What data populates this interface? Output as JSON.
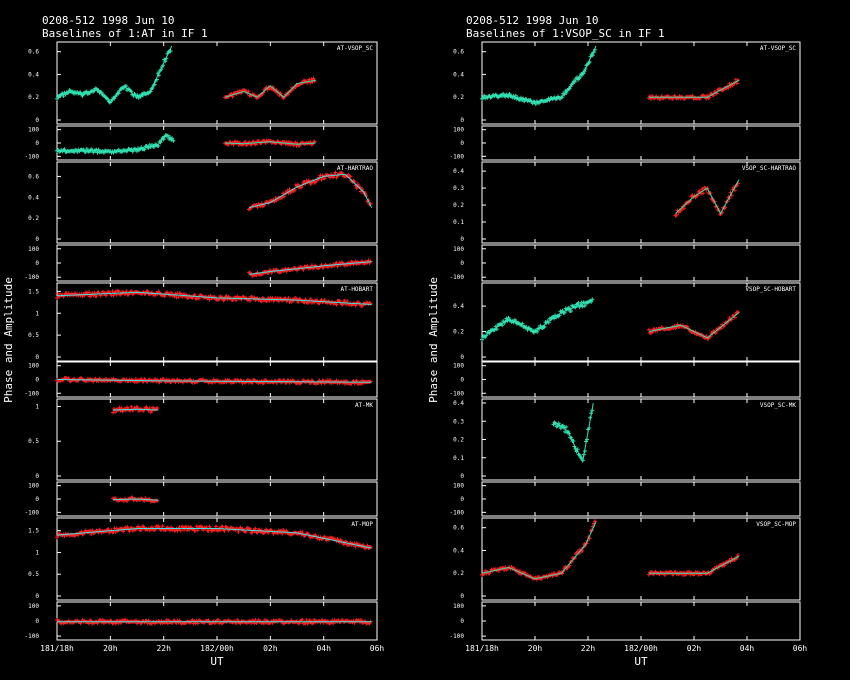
{
  "colors": {
    "background": "#000000",
    "axes": "#ffffff",
    "data": "#ff2020",
    "model": "#30e0b0",
    "model_alt": "#40e0e0"
  },
  "panels": [
    {
      "source_line": "0208-512  1998 Jun 10",
      "title_line": "Baselines of 1:AT in IF 1",
      "ylabel": "Phase and Amplitude",
      "xlabel": "UT",
      "xticks": [
        "181/18h",
        "20h",
        "22h",
        "182/00h",
        "02h",
        "04h",
        "06h"
      ],
      "subplots": [
        {
          "label": "AT-VSOP_SC",
          "amp_ticks": [
            "0",
            "0.2",
            "0.4",
            "0.6"
          ],
          "amp_max": 0.65,
          "phase_ticks": [
            "100",
            "0",
            "-100"
          ]
        },
        {
          "label": "AT-HARTRAO",
          "amp_ticks": [
            "0",
            "0.2",
            "0.4",
            "0.6"
          ],
          "amp_max": 0.7,
          "phase_ticks": [
            "100",
            "0",
            "-100"
          ]
        },
        {
          "label": "AT-HOBART",
          "amp_ticks": [
            "0",
            "0.5",
            "1",
            "1.5"
          ],
          "amp_max": 1.6,
          "phase_ticks": [
            "100",
            "0",
            "-100"
          ]
        },
        {
          "label": "AT-MK",
          "amp_ticks": [
            "0",
            "0.5",
            "1"
          ],
          "amp_max": 1.05,
          "phase_ticks": [
            "100",
            "0",
            "-100"
          ]
        },
        {
          "label": "AT-MOP",
          "amp_ticks": [
            "0",
            "0.5",
            "1",
            "1.5"
          ],
          "amp_max": 1.7,
          "phase_ticks": [
            "100",
            "0",
            "-100"
          ]
        }
      ]
    },
    {
      "source_line": "0208-512  1998 Jun 10",
      "title_line": "Baselines of 1:VSOP_SC in IF 1",
      "ylabel": "Phase and Amplitude",
      "xlabel": "UT",
      "xticks": [
        "181/18h",
        "20h",
        "22h",
        "182/00h",
        "02h",
        "04h",
        "06h"
      ],
      "subplots": [
        {
          "label": "AT-VSOP_SC",
          "amp_ticks": [
            "0",
            "0.2",
            "0.4",
            "0.6"
          ],
          "amp_max": 0.65,
          "phase_ticks": [
            "100",
            "0",
            "-100"
          ]
        },
        {
          "label": "VSOP_SC-HARTRAO",
          "amp_ticks": [
            "0",
            "0.1",
            "0.2",
            "0.3",
            "0.4"
          ],
          "amp_max": 0.43,
          "phase_ticks": [
            "100",
            "0",
            "-100"
          ]
        },
        {
          "label": "VSOP_SC-HOBART",
          "amp_ticks": [
            "0",
            "0.2",
            "0.4"
          ],
          "amp_max": 0.55,
          "phase_ticks": [
            "100",
            "0",
            "-100"
          ]
        },
        {
          "label": "VSOP_SC-MK",
          "amp_ticks": [
            "0",
            "0.1",
            "0.2",
            "0.3",
            "0.4"
          ],
          "amp_max": 0.4,
          "phase_ticks": [
            "100",
            "0",
            "-100"
          ]
        },
        {
          "label": "VSOP_SC-MOP",
          "amp_ticks": [
            "0",
            "0.2",
            "0.4",
            "0.6"
          ],
          "amp_max": 0.65,
          "phase_ticks": [
            "100",
            "0",
            "-100"
          ]
        }
      ]
    }
  ],
  "chart_data": [
    {
      "type": "scatter",
      "title": "0208-512  1998 Jun 10 — Baselines of 1:AT in IF 1",
      "xlabel": "UT",
      "ylabel": "Phase and Amplitude",
      "x_unit": "hours from 181/18h",
      "xlim": [
        0,
        12
      ],
      "series": [
        {
          "name": "AT-VSOP_SC amplitude",
          "segments": [
            [
              [
                0,
                0.2
              ],
              [
                0.5,
                0.25
              ],
              [
                1,
                0.22
              ],
              [
                1.5,
                0.28
              ],
              [
                2,
                0.15
              ],
              [
                2.5,
                0.3
              ],
              [
                3,
                0.2
              ],
              [
                3.5,
                0.25
              ],
              [
                3.9,
                0.45
              ],
              [
                4.3,
                0.65
              ]
            ],
            [
              [
                6.3,
                0.2
              ],
              [
                7,
                0.25
              ],
              [
                7.5,
                0.2
              ],
              [
                8,
                0.3
              ],
              [
                8.5,
                0.2
              ],
              [
                9,
                0.32
              ],
              [
                9.7,
                0.35
              ]
            ]
          ]
        },
        {
          "name": "AT-VSOP_SC phase",
          "segments": [
            [
              [
                0,
                -60
              ],
              [
                1,
                -55
              ],
              [
                2,
                -65
              ],
              [
                3,
                -50
              ],
              [
                3.8,
                -10
              ],
              [
                4.1,
                60
              ],
              [
                4.4,
                10
              ]
            ],
            [
              [
                6.3,
                0
              ],
              [
                7,
                -5
              ],
              [
                8,
                10
              ],
              [
                9,
                -10
              ],
              [
                9.7,
                0
              ]
            ]
          ]
        },
        {
          "name": "AT-HARTRAO amplitude",
          "segments": [
            [
              [
                7.2,
                0.3
              ],
              [
                8,
                0.35
              ],
              [
                9,
                0.5
              ],
              [
                10,
                0.6
              ],
              [
                10.8,
                0.62
              ],
              [
                11.5,
                0.45
              ],
              [
                11.8,
                0.3
              ]
            ]
          ]
        },
        {
          "name": "AT-HARTRAO phase",
          "segments": [
            [
              [
                7.2,
                -80
              ],
              [
                8,
                -60
              ],
              [
                9,
                -40
              ],
              [
                10,
                -20
              ],
              [
                11.8,
                10
              ]
            ]
          ]
        },
        {
          "name": "AT-HOBART amplitude",
          "segments": [
            [
              [
                0,
                1.4
              ],
              [
                3,
                1.48
              ],
              [
                6,
                1.35
              ],
              [
                9,
                1.3
              ],
              [
                11.8,
                1.2
              ]
            ]
          ]
        },
        {
          "name": "AT-HOBART phase",
          "segments": [
            [
              [
                0,
                0
              ],
              [
                4,
                -10
              ],
              [
                8,
                -15
              ],
              [
                11.8,
                -20
              ]
            ]
          ]
        },
        {
          "name": "AT-MK amplitude",
          "segments": [
            [
              [
                2.1,
                0.95
              ],
              [
                3,
                0.96
              ],
              [
                3.8,
                0.95
              ]
            ]
          ]
        },
        {
          "name": "AT-MK phase",
          "segments": [
            [
              [
                2.1,
                -5
              ],
              [
                3,
                0
              ],
              [
                3.8,
                -10
              ]
            ]
          ]
        },
        {
          "name": "AT-MOP amplitude",
          "segments": [
            [
              [
                0,
                1.4
              ],
              [
                3,
                1.55
              ],
              [
                6,
                1.55
              ],
              [
                9,
                1.45
              ],
              [
                11.8,
                1.1
              ]
            ]
          ]
        },
        {
          "name": "AT-MOP phase",
          "segments": [
            [
              [
                0,
                -5
              ],
              [
                6,
                -5
              ],
              [
                11.8,
                -5
              ]
            ]
          ]
        }
      ]
    },
    {
      "type": "scatter",
      "title": "0208-512  1998 Jun 10 — Baselines of 1:VSOP_SC in IF 1",
      "xlabel": "UT",
      "ylabel": "Phase and Amplitude",
      "x_unit": "hours from 181/18h",
      "xlim": [
        0,
        12
      ],
      "series": [
        {
          "name": "AT-VSOP_SC amplitude",
          "segments": [
            [
              [
                0,
                0.2
              ],
              [
                1,
                0.22
              ],
              [
                2,
                0.15
              ],
              [
                3,
                0.2
              ],
              [
                3.9,
                0.45
              ],
              [
                4.3,
                0.65
              ]
            ],
            [
              [
                6.3,
                0.2
              ],
              [
                7.5,
                0.2
              ],
              [
                8.5,
                0.2
              ],
              [
                9.7,
                0.35
              ]
            ]
          ]
        },
        {
          "name": "VSOP_SC-HARTRAO amplitude",
          "segments": [
            [
              [
                7.3,
                0.15
              ],
              [
                8,
                0.25
              ],
              [
                8.5,
                0.3
              ],
              [
                9,
                0.15
              ],
              [
                9.7,
                0.35
              ]
            ]
          ]
        },
        {
          "name": "VSOP_SC-HOBART amplitude",
          "segments": [
            [
              [
                0,
                0.15
              ],
              [
                1,
                0.3
              ],
              [
                2,
                0.2
              ],
              [
                3,
                0.35
              ],
              [
                4.2,
                0.45
              ]
            ],
            [
              [
                6.3,
                0.2
              ],
              [
                7.5,
                0.25
              ],
              [
                8.5,
                0.15
              ],
              [
                9.7,
                0.35
              ]
            ]
          ]
        },
        {
          "name": "VSOP_SC-MK amplitude",
          "segments": [
            [
              [
                2.7,
                0.3
              ],
              [
                3.2,
                0.25
              ],
              [
                3.8,
                0.08
              ],
              [
                4.2,
                0.4
              ]
            ]
          ]
        },
        {
          "name": "VSOP_SC-MOP amplitude",
          "segments": [
            [
              [
                0,
                0.2
              ],
              [
                1,
                0.25
              ],
              [
                2,
                0.15
              ],
              [
                3,
                0.2
              ],
              [
                3.9,
                0.45
              ],
              [
                4.3,
                0.65
              ]
            ],
            [
              [
                6.3,
                0.2
              ],
              [
                7.5,
                0.2
              ],
              [
                8.5,
                0.2
              ],
              [
                9.7,
                0.35
              ]
            ]
          ]
        }
      ]
    }
  ]
}
